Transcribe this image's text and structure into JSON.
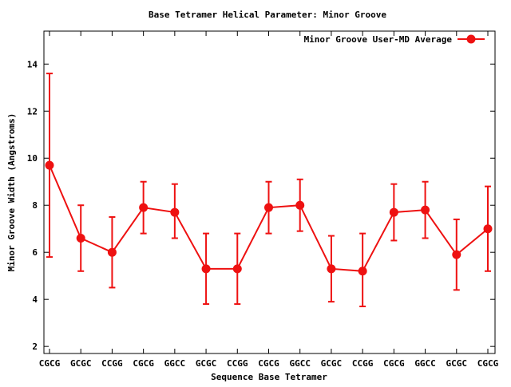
{
  "chart_data": {
    "type": "line",
    "title": "Base Tetramer Helical Parameter: Minor Groove",
    "xlabel": "Sequence Base Tetramer",
    "ylabel": "Minor Groove Width (Angstroms)",
    "ylim": [
      1.7,
      15.4
    ],
    "yticks": [
      2,
      4,
      6,
      8,
      10,
      12,
      14
    ],
    "categories": [
      "CGCG",
      "GCGC",
      "CCGG",
      "CGCG",
      "GGCC",
      "GCGC",
      "CCGG",
      "CGCG",
      "GGCC",
      "GCGC",
      "CCGG",
      "CGCG",
      "GGCC",
      "GCGC",
      "CGCG"
    ],
    "legend_position": "top-right",
    "grid": false,
    "series": [
      {
        "name": "Minor Groove User-MD Average",
        "color": "#ee1111",
        "values": [
          9.7,
          6.6,
          6.0,
          7.9,
          7.7,
          5.3,
          5.3,
          7.9,
          8.0,
          5.3,
          5.2,
          7.7,
          7.8,
          5.9,
          7.0
        ],
        "error_low": [
          5.8,
          5.2,
          4.5,
          6.8,
          6.6,
          3.8,
          3.8,
          6.8,
          6.9,
          3.9,
          3.7,
          6.5,
          6.6,
          4.4,
          5.2
        ],
        "error_high": [
          13.6,
          8.0,
          7.5,
          9.0,
          8.9,
          6.8,
          6.8,
          9.0,
          9.1,
          6.7,
          6.8,
          8.9,
          9.0,
          7.4,
          8.8
        ]
      }
    ]
  }
}
